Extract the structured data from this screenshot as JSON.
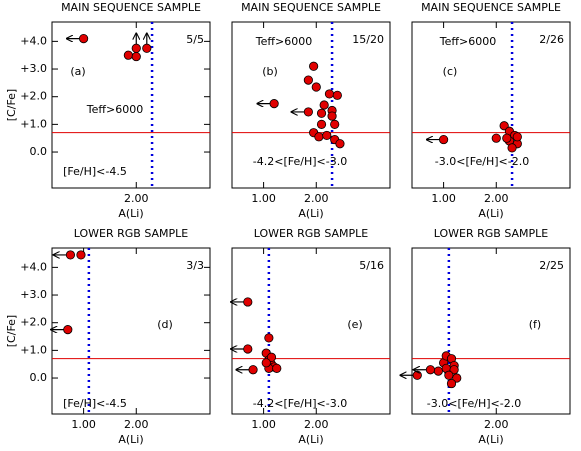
{
  "chart_data": [
    {
      "type": "scatter",
      "title": "MAIN SEQUENCE SAMPLE",
      "xlabel": "A(Li)",
      "ylabel": "[C/Fe]",
      "panel_label": "(a)",
      "fraction": "5/5",
      "teff": "Teff>6000",
      "feh": "[Fe/H]<-4.5",
      "xlim": [
        0.4,
        3.4
      ],
      "ylim": [
        -1.3,
        4.7
      ],
      "xticks": [
        {
          "value": 2,
          "label": "2.00"
        }
      ],
      "yticks": [
        {
          "value": 4,
          "label": "+4.0"
        },
        {
          "value": 3,
          "label": "+3.0"
        },
        {
          "value": 2,
          "label": "+2.0"
        },
        {
          "value": 1,
          "label": "+1.0"
        },
        {
          "value": 0,
          "label": "0.0"
        }
      ],
      "hline": 0.7,
      "vline": 2.3,
      "color": "#e00000",
      "hline_color": "#e00000",
      "vline_color": "#0000dd",
      "points": {
        "x": [
          1.85,
          2.0
        ],
        "y": [
          3.5,
          3.45
        ]
      },
      "x_upper_limits": {
        "x": [
          1.0
        ],
        "y": [
          4.1
        ]
      },
      "y_lower_limits": {
        "x": [
          2.0,
          2.2
        ],
        "y": [
          3.75,
          3.75
        ]
      }
    },
    {
      "type": "scatter",
      "title": "MAIN SEQUENCE SAMPLE",
      "xlabel": "A(Li)",
      "panel_label": "(b)",
      "fraction": "15/20",
      "teff": "Teff>6000",
      "feh": "-4.2<[Fe/H]<-3.0",
      "xlim": [
        0.4,
        3.4
      ],
      "ylim": [
        -1.3,
        4.7
      ],
      "xticks": [
        {
          "value": 1,
          "label": "1.00"
        },
        {
          "value": 2,
          "label": "2.00"
        }
      ],
      "hline": 0.7,
      "vline": 2.3,
      "color": "#e00000",
      "hline_color": "#e00000",
      "vline_color": "#0000dd",
      "points": {
        "x": [
          1.95,
          1.85,
          2.0,
          2.25,
          2.4,
          2.15,
          2.3,
          2.1,
          2.35,
          1.95,
          2.05,
          2.2,
          2.35,
          2.45,
          2.3,
          2.1
        ],
        "y": [
          3.1,
          2.6,
          2.35,
          2.1,
          2.05,
          1.7,
          1.5,
          1.0,
          1.0,
          0.7,
          0.55,
          0.6,
          0.45,
          0.3,
          1.3,
          1.4
        ]
      },
      "x_upper_limits": {
        "x": [
          1.2,
          1.85
        ],
        "y": [
          1.75,
          1.45
        ]
      }
    },
    {
      "type": "scatter",
      "title": "MAIN SEQUENCE SAMPLE",
      "xlabel": "A(Li)",
      "panel_label": "(c)",
      "fraction": "2/26",
      "teff": "Teff>6000",
      "feh": "-3.0<[Fe/H]<-2.0",
      "xlim": [
        0.4,
        3.4
      ],
      "ylim": [
        -1.3,
        4.7
      ],
      "xticks": [
        {
          "value": 1,
          "label": "1.00"
        },
        {
          "value": 2,
          "label": "2.00"
        }
      ],
      "hline": 0.7,
      "vline": 2.3,
      "color": "#e00000",
      "hline_color": "#e00000",
      "vline_color": "#0000dd",
      "points": {
        "x": [
          2.0,
          2.15,
          2.25,
          2.35,
          2.25,
          2.4,
          2.3,
          2.4,
          2.2
        ],
        "y": [
          0.5,
          0.95,
          0.75,
          0.6,
          0.4,
          0.3,
          0.15,
          0.55,
          0.5
        ]
      },
      "x_upper_limits": {
        "x": [
          1.0
        ],
        "y": [
          0.45
        ]
      }
    },
    {
      "type": "scatter",
      "title": "LOWER RGB SAMPLE",
      "xlabel": "A(Li)",
      "ylabel": "[C/Fe]",
      "panel_label": "(d)",
      "fraction": "3/3",
      "feh": "[Fe/H]<-4.5",
      "xlim": [
        0.4,
        3.4
      ],
      "ylim": [
        -1.3,
        4.7
      ],
      "xticks": [
        {
          "value": 1,
          "label": "1.00"
        },
        {
          "value": 2,
          "label": "2.00"
        }
      ],
      "yticks": [
        {
          "value": 4,
          "label": "+4.0"
        },
        {
          "value": 3,
          "label": "+3.0"
        },
        {
          "value": 2,
          "label": "+2.0"
        },
        {
          "value": 1,
          "label": "+1.0"
        },
        {
          "value": 0,
          "label": "0.0"
        }
      ],
      "hline": 0.7,
      "vline": 1.1,
      "color": "#e00000",
      "hline_color": "#e00000",
      "vline_color": "#0000dd",
      "points": {
        "x": [
          0.95
        ],
        "y": [
          4.45
        ]
      },
      "x_upper_limits": {
        "x": [
          0.75,
          0.7
        ],
        "y": [
          4.45,
          1.75
        ]
      }
    },
    {
      "type": "scatter",
      "title": "LOWER RGB SAMPLE",
      "xlabel": "A(Li)",
      "panel_label": "(e)",
      "fraction": "5/16",
      "feh": "-4.2<[Fe/H]<-3.0",
      "xlim": [
        0.4,
        3.4
      ],
      "ylim": [
        -1.3,
        4.7
      ],
      "xticks": [
        {
          "value": 1,
          "label": "1.00"
        },
        {
          "value": 2,
          "label": "2.00"
        }
      ],
      "hline": 0.7,
      "vline": 1.1,
      "color": "#e00000",
      "hline_color": "#e00000",
      "vline_color": "#0000dd",
      "points": {
        "x": [
          1.1,
          1.05,
          1.1,
          1.15,
          1.2,
          1.1,
          1.25,
          1.15,
          1.05
        ],
        "y": [
          1.45,
          0.9,
          0.65,
          0.5,
          0.4,
          0.35,
          0.35,
          0.75,
          0.55
        ]
      },
      "x_upper_limits": {
        "x": [
          0.7,
          0.7,
          0.8
        ],
        "y": [
          2.75,
          1.05,
          0.3
        ]
      }
    },
    {
      "type": "scatter",
      "title": "LOWER RGB SAMPLE",
      "xlabel": "A(Li)",
      "panel_label": "(f)",
      "fraction": "2/25",
      "feh": "-3.0<[Fe/H]<-2.0",
      "xlim": [
        0.4,
        3.4
      ],
      "ylim": [
        -1.3,
        4.7
      ],
      "xticks": [
        {
          "value": 2,
          "label": "2.00"
        }
      ],
      "hline": 0.7,
      "vline": 1.1,
      "color": "#e00000",
      "hline_color": "#e00000",
      "vline_color": "#0000dd",
      "points": {
        "x": [
          0.9,
          1.0,
          1.05,
          1.15,
          1.2,
          1.1,
          1.25,
          1.15,
          1.05,
          1.2,
          1.1
        ],
        "y": [
          0.25,
          0.55,
          0.8,
          0.7,
          0.45,
          0.2,
          0.0,
          -0.2,
          0.35,
          0.3,
          0.1
        ]
      },
      "x_upper_limits": {
        "x": [
          0.5,
          0.75
        ],
        "y": [
          0.1,
          0.3
        ]
      }
    }
  ]
}
